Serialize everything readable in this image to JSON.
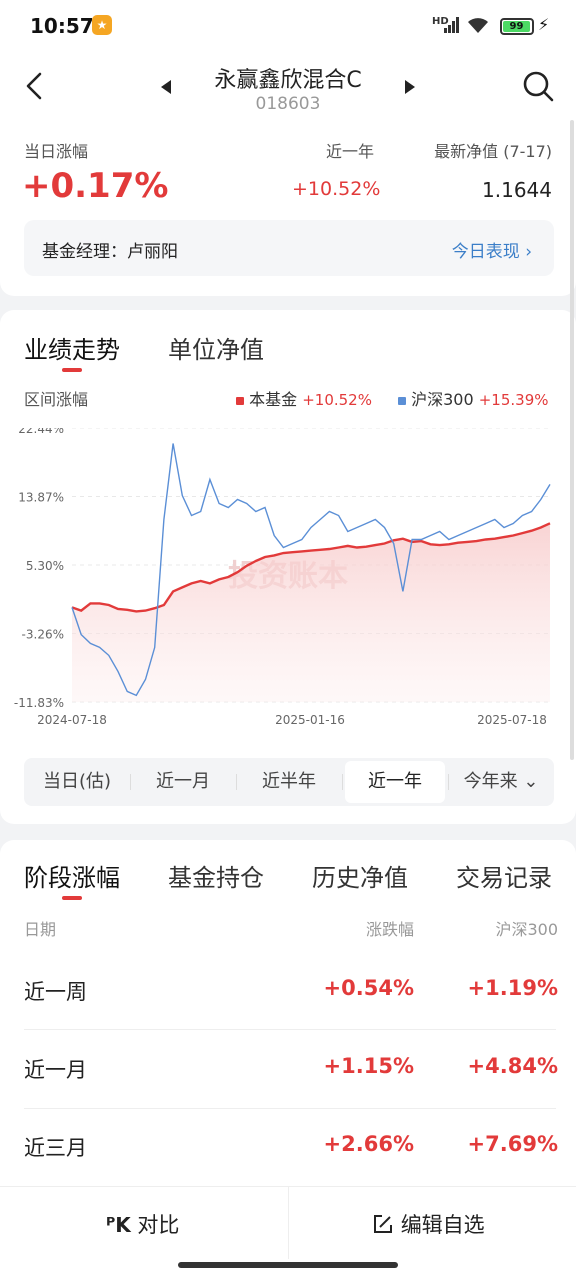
{
  "status": {
    "time": "10:57",
    "network": "HD",
    "battery": "99"
  },
  "header": {
    "fund_name": "永赢鑫欣混合C",
    "fund_code": "018603",
    "daily_change_label": "当日涨幅",
    "daily_change": "+0.17%",
    "year_label": "近一年",
    "year_change": "+10.52%",
    "nav_label": "最新净值 (7-17)",
    "nav_value": "1.1644",
    "manager_label": "基金经理：卢丽阳",
    "today_link": "今日表现"
  },
  "chart_tabs": [
    "业绩走势",
    "单位净值"
  ],
  "chart_section": {
    "range_label": "区间涨幅",
    "legend": [
      {
        "name": "本基金",
        "value": "+10.52%",
        "color": "#e23a3a"
      },
      {
        "name": "沪深300",
        "value": "+15.39%",
        "color": "#5b8fd6"
      }
    ],
    "watermark": "投资账本"
  },
  "chart_data": {
    "type": "line",
    "y_ticks": [
      "22.44%",
      "13.87%",
      "5.30%",
      "-3.26%",
      "-11.83%"
    ],
    "x_ticks": [
      "2024-07-18",
      "2025-01-16",
      "2025-07-18"
    ],
    "ylim": [
      -11.83,
      22.44
    ],
    "series": [
      {
        "name": "本基金",
        "color": "#e23a3a",
        "values": [
          0.0,
          -0.4,
          0.5,
          0.5,
          0.3,
          -0.2,
          -0.3,
          -0.5,
          -0.4,
          -0.1,
          0.3,
          2.0,
          2.5,
          3.0,
          3.3,
          3.0,
          3.5,
          3.8,
          4.4,
          5.2,
          5.8,
          6.3,
          6.5,
          6.8,
          6.9,
          7.0,
          7.1,
          7.2,
          7.3,
          7.5,
          7.7,
          7.5,
          7.6,
          7.8,
          8.0,
          8.4,
          8.6,
          8.2,
          8.3,
          7.9,
          7.8,
          7.9,
          8.1,
          8.2,
          8.3,
          8.5,
          8.6,
          8.8,
          9.0,
          9.3,
          9.6,
          10.0,
          10.52
        ]
      },
      {
        "name": "沪深300",
        "color": "#5b8fd6",
        "values": [
          0.0,
          -3.4,
          -4.5,
          -5.0,
          -6.0,
          -8.0,
          -10.5,
          -11.0,
          -9.0,
          -5.0,
          11.0,
          20.5,
          14.0,
          11.5,
          12.0,
          16.0,
          13.0,
          12.5,
          13.5,
          13.0,
          12.0,
          12.5,
          9.0,
          7.5,
          8.0,
          8.5,
          10.0,
          11.0,
          12.0,
          11.5,
          9.5,
          10.0,
          10.5,
          11.0,
          10.0,
          8.0,
          2.0,
          8.5,
          8.5,
          9.0,
          9.5,
          8.5,
          9.0,
          9.5,
          10.0,
          10.5,
          11.0,
          10.0,
          10.5,
          11.5,
          12.0,
          13.5,
          15.39
        ]
      }
    ]
  },
  "periods": [
    "当日(估)",
    "近一月",
    "近半年",
    "近一年",
    "今年来"
  ],
  "selected_period": "近一年",
  "table_tabs": [
    "阶段涨幅",
    "基金持仓",
    "历史净值",
    "交易记录"
  ],
  "table": {
    "headers": [
      "日期",
      "涨跌幅",
      "沪深300"
    ],
    "rows": [
      {
        "period": "近一周",
        "change": "+0.54%",
        "hs300": "+1.19%"
      },
      {
        "period": "近一月",
        "change": "+1.15%",
        "hs300": "+4.84%"
      },
      {
        "period": "近三月",
        "change": "+2.66%",
        "hs300": "+7.69%"
      }
    ]
  },
  "bottom": {
    "compare": "对比",
    "edit": "编辑自选"
  }
}
